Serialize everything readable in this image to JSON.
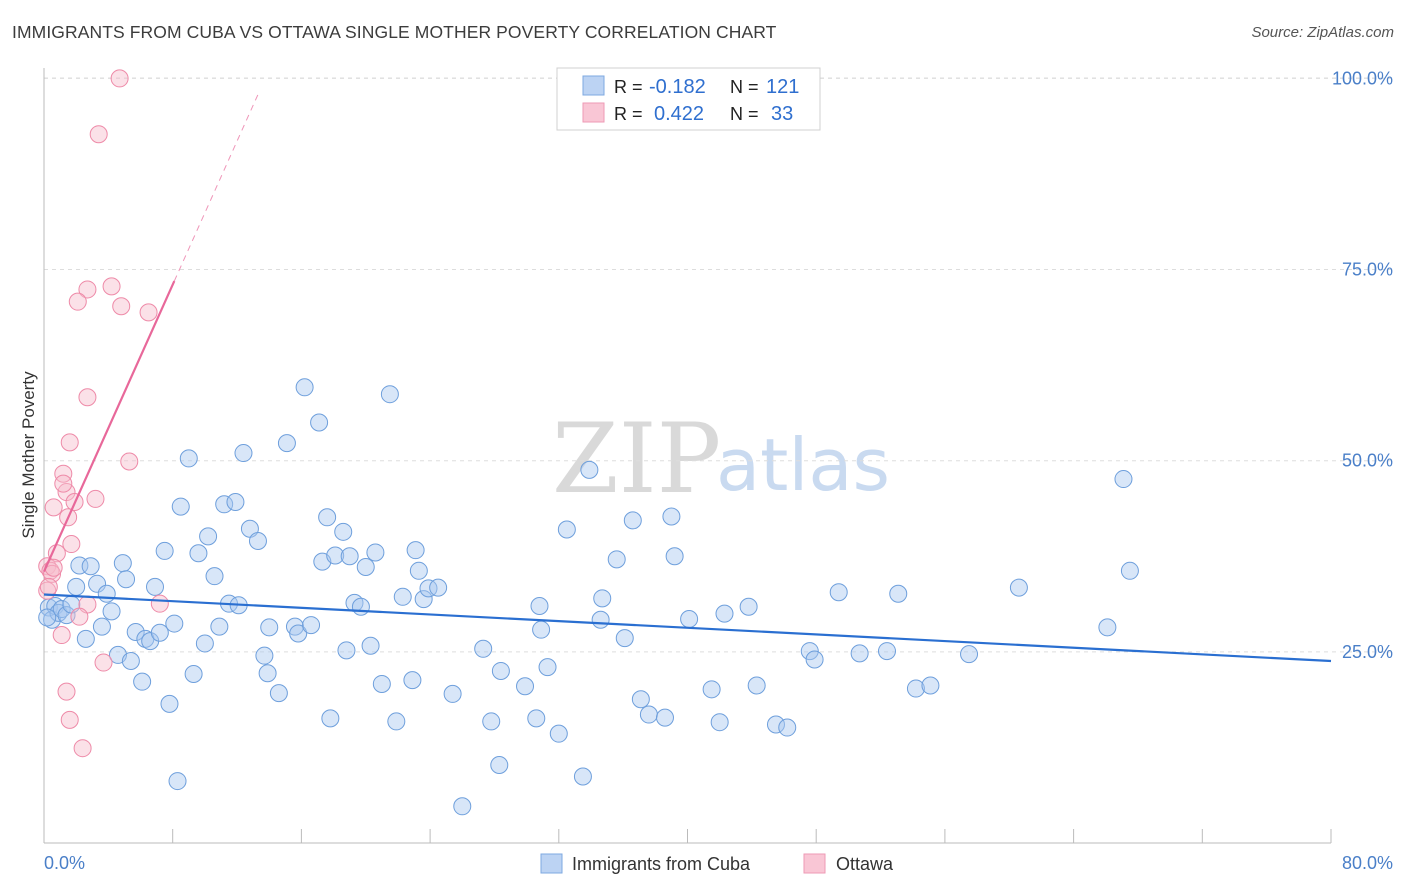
{
  "title": "IMMIGRANTS FROM CUBA VS OTTAWA SINGLE MOTHER POVERTY CORRELATION CHART",
  "source": "Source: ZipAtlas.com",
  "watermark": {
    "zip": "ZIP",
    "atlas": "atlas"
  },
  "colors": {
    "blue_fill": "#a9c8ef",
    "blue_stroke": "#6e9fdc",
    "blue_line": "#2a6fd1",
    "pink_fill": "#f7bccd",
    "pink_stroke": "#ee8aa8",
    "pink_line": "#e8689a",
    "grid": "#dddddd",
    "tick_text": "#4a7fc8"
  },
  "legend_top": {
    "rows": [
      {
        "r_label": "R =",
        "r_value": "-0.182",
        "n_label": "N =",
        "n_value": "121",
        "series": "blue"
      },
      {
        "r_label": "R =",
        "r_value": "0.422",
        "n_label": "N =",
        "n_value": "33",
        "series": "pink"
      }
    ]
  },
  "legend_bottom": {
    "items": [
      {
        "label": "Immigrants from Cuba",
        "series": "blue"
      },
      {
        "label": "Ottawa",
        "series": "pink"
      }
    ]
  },
  "chart_data": {
    "type": "scatter",
    "title": "IMMIGRANTS FROM CUBA VS OTTAWA SINGLE MOTHER POVERTY CORRELATION CHART",
    "xlabel": "",
    "ylabel": "Single Mother Poverty",
    "xlim": [
      0,
      80
    ],
    "ylim": [
      0,
      102.5
    ],
    "x_tick_labels": {
      "left": "0.0%",
      "right": "80.0%"
    },
    "y_ticks": [
      {
        "value": 25,
        "label": "25.0%"
      },
      {
        "value": 50,
        "label": "50.0%"
      },
      {
        "value": 75,
        "label": "75.0%"
      },
      {
        "value": 100,
        "label": "100.0%"
      }
    ],
    "series": [
      {
        "name": "Immigrants from Cuba",
        "color": "blue",
        "trend": {
          "x0": 0,
          "y0": 32.5,
          "x1": 80,
          "y1": 23.8
        },
        "points": [
          [
            0.3,
            30.8
          ],
          [
            0.5,
            29.2
          ],
          [
            0.7,
            31.0
          ],
          [
            0.9,
            30.1
          ],
          [
            1.1,
            30.6
          ],
          [
            1.4,
            29.8
          ],
          [
            1.7,
            31.2
          ],
          [
            2.0,
            33.5
          ],
          [
            2.2,
            36.3
          ],
          [
            2.6,
            26.7
          ],
          [
            2.9,
            36.2
          ],
          [
            3.3,
            33.9
          ],
          [
            3.6,
            28.3
          ],
          [
            3.9,
            32.6
          ],
          [
            4.2,
            30.3
          ],
          [
            4.6,
            24.6
          ],
          [
            4.9,
            36.6
          ],
          [
            5.1,
            34.5
          ],
          [
            5.4,
            23.8
          ],
          [
            5.7,
            27.6
          ],
          [
            6.1,
            21.1
          ],
          [
            6.3,
            26.7
          ],
          [
            6.6,
            26.4
          ],
          [
            6.9,
            33.5
          ],
          [
            7.2,
            27.5
          ],
          [
            7.5,
            38.2
          ],
          [
            7.8,
            18.2
          ],
          [
            8.1,
            28.7
          ],
          [
            8.5,
            44.0
          ],
          [
            8.3,
            8.1
          ],
          [
            9.0,
            50.3
          ],
          [
            9.3,
            22.1
          ],
          [
            9.6,
            37.9
          ],
          [
            10.0,
            26.1
          ],
          [
            10.2,
            40.1
          ],
          [
            10.6,
            34.9
          ],
          [
            10.9,
            28.3
          ],
          [
            11.2,
            44.3
          ],
          [
            11.5,
            31.3
          ],
          [
            11.9,
            44.6
          ],
          [
            12.1,
            31.1
          ],
          [
            12.4,
            51.0
          ],
          [
            12.8,
            41.1
          ],
          [
            13.3,
            39.5
          ],
          [
            13.7,
            24.5
          ],
          [
            13.9,
            22.2
          ],
          [
            14.0,
            28.2
          ],
          [
            14.6,
            19.6
          ],
          [
            15.1,
            52.3
          ],
          [
            15.6,
            28.3
          ],
          [
            15.8,
            27.4
          ],
          [
            16.2,
            59.6
          ],
          [
            16.6,
            28.5
          ],
          [
            17.1,
            55.0
          ],
          [
            17.3,
            36.8
          ],
          [
            17.6,
            42.6
          ],
          [
            17.8,
            16.3
          ],
          [
            18.1,
            37.6
          ],
          [
            18.6,
            40.7
          ],
          [
            18.8,
            25.2
          ],
          [
            19.0,
            37.5
          ],
          [
            19.3,
            31.4
          ],
          [
            19.7,
            30.9
          ],
          [
            20.0,
            36.1
          ],
          [
            20.3,
            25.8
          ],
          [
            20.6,
            38.0
          ],
          [
            21.0,
            20.8
          ],
          [
            21.5,
            58.7
          ],
          [
            21.9,
            15.9
          ],
          [
            22.3,
            32.2
          ],
          [
            22.9,
            21.3
          ],
          [
            23.1,
            38.3
          ],
          [
            23.3,
            35.6
          ],
          [
            23.6,
            31.9
          ],
          [
            23.9,
            33.3
          ],
          [
            24.5,
            33.4
          ],
          [
            25.4,
            19.5
          ],
          [
            26.0,
            4.8
          ],
          [
            27.3,
            25.4
          ],
          [
            27.8,
            15.9
          ],
          [
            28.3,
            10.2
          ],
          [
            28.4,
            22.5
          ],
          [
            29.9,
            20.5
          ],
          [
            30.6,
            16.3
          ],
          [
            30.8,
            31.0
          ],
          [
            30.9,
            27.9
          ],
          [
            31.3,
            23.0
          ],
          [
            32.0,
            14.3
          ],
          [
            32.5,
            41.0
          ],
          [
            33.5,
            8.7
          ],
          [
            33.9,
            48.8
          ],
          [
            34.6,
            29.2
          ],
          [
            34.7,
            32.0
          ],
          [
            35.6,
            37.1
          ],
          [
            36.1,
            26.8
          ],
          [
            36.6,
            42.2
          ],
          [
            37.1,
            18.8
          ],
          [
            37.6,
            16.8
          ],
          [
            38.6,
            16.4
          ],
          [
            39.0,
            42.7
          ],
          [
            39.2,
            37.5
          ],
          [
            40.1,
            29.3
          ],
          [
            41.5,
            20.1
          ],
          [
            42.0,
            15.8
          ],
          [
            42.3,
            30.0
          ],
          [
            43.8,
            30.9
          ],
          [
            44.3,
            20.6
          ],
          [
            45.5,
            15.5
          ],
          [
            46.2,
            15.1
          ],
          [
            47.6,
            25.1
          ],
          [
            47.9,
            24.0
          ],
          [
            49.4,
            32.8
          ],
          [
            50.7,
            24.8
          ],
          [
            52.4,
            25.1
          ],
          [
            53.1,
            32.6
          ],
          [
            54.2,
            20.2
          ],
          [
            55.1,
            20.6
          ],
          [
            57.5,
            24.7
          ],
          [
            60.6,
            33.4
          ],
          [
            66.1,
            28.2
          ],
          [
            67.1,
            47.6
          ],
          [
            67.5,
            35.6
          ],
          [
            0.2,
            29.5
          ]
        ]
      },
      {
        "name": "Ottawa",
        "color": "pink",
        "trend": {
          "x0": 0,
          "y0": 35.5,
          "x1": 8.1,
          "y1": 73.5,
          "dash_to_x": 13.3
        },
        "points": [
          [
            4.7,
            100.0
          ],
          [
            3.4,
            92.7
          ],
          [
            2.7,
            72.4
          ],
          [
            4.2,
            72.8
          ],
          [
            2.1,
            70.8
          ],
          [
            4.8,
            70.2
          ],
          [
            6.5,
            69.4
          ],
          [
            2.7,
            58.3
          ],
          [
            1.6,
            52.4
          ],
          [
            5.3,
            49.9
          ],
          [
            1.2,
            48.3
          ],
          [
            1.4,
            45.9
          ],
          [
            1.2,
            47.0
          ],
          [
            3.2,
            45.0
          ],
          [
            1.9,
            44.6
          ],
          [
            0.6,
            43.9
          ],
          [
            1.5,
            42.6
          ],
          [
            1.7,
            39.1
          ],
          [
            0.8,
            37.9
          ],
          [
            0.2,
            36.2
          ],
          [
            0.4,
            35.6
          ],
          [
            0.5,
            35.2
          ],
          [
            0.2,
            33.0
          ],
          [
            2.7,
            31.2
          ],
          [
            7.2,
            31.3
          ],
          [
            2.2,
            29.6
          ],
          [
            1.1,
            27.2
          ],
          [
            3.7,
            23.6
          ],
          [
            1.4,
            19.8
          ],
          [
            1.6,
            16.1
          ],
          [
            2.4,
            12.4
          ],
          [
            0.3,
            33.5
          ],
          [
            0.6,
            36.0
          ]
        ]
      }
    ]
  }
}
